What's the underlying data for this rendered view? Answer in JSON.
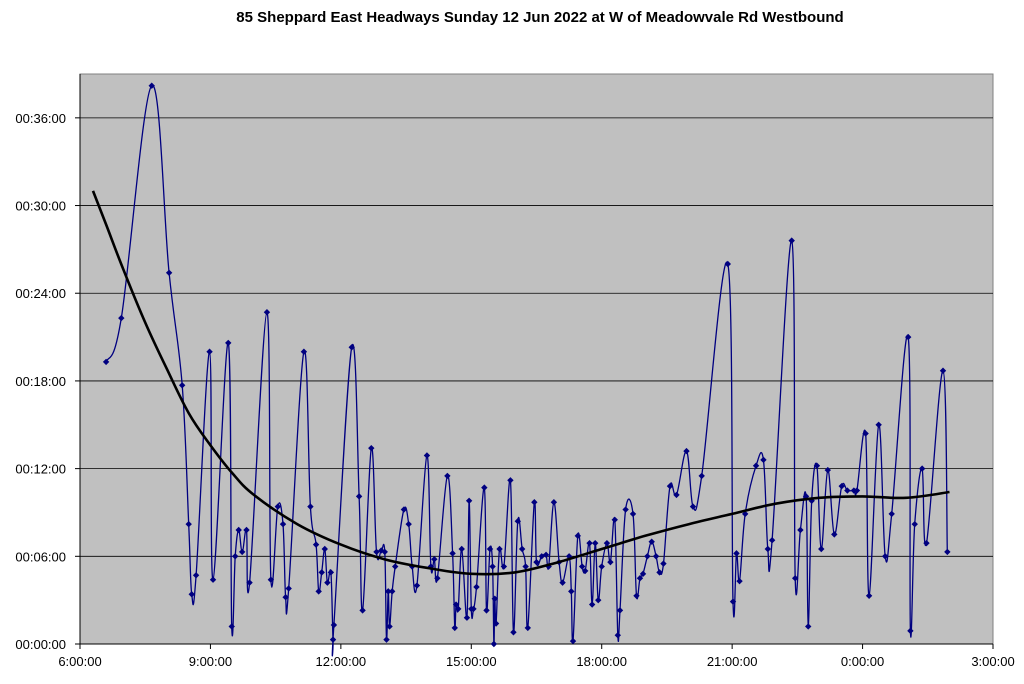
{
  "chart_data": {
    "type": "line",
    "title": "85 Sheppard East Headways Sunday 12 Jun 2022 at W of Meadowvale Rd Westbound",
    "xlabel": "",
    "ylabel": "",
    "x_unit": "hours since 6:00:00",
    "y_unit": "minutes",
    "xlim": [
      0,
      21
    ],
    "ylim": [
      0,
      39
    ],
    "x_tick_values": [
      0,
      3,
      6,
      9,
      12,
      15,
      18,
      21
    ],
    "x_tick_labels": [
      "6:00:00",
      "9:00:00",
      "12:00:00",
      "15:00:00",
      "18:00:00",
      "21:00:00",
      "0:00:00",
      "3:00:00"
    ],
    "y_tick_values": [
      0,
      6,
      12,
      18,
      24,
      30,
      36
    ],
    "y_tick_labels": [
      "00:00:00",
      "00:06:00",
      "00:12:00",
      "00:18:00",
      "00:24:00",
      "00:30:00",
      "00:36:00"
    ],
    "grid": "horizontal",
    "plot_background": "#c0c0c0",
    "series": [
      {
        "name": "",
        "style": "line-with-diamond-markers",
        "color": "#000080",
        "points": [
          [
            0.6,
            19.3
          ],
          [
            0.95,
            22.3
          ],
          [
            1.65,
            38.2
          ],
          [
            2.05,
            25.4
          ],
          [
            2.35,
            17.7
          ],
          [
            2.5,
            8.2
          ],
          [
            2.57,
            3.4
          ],
          [
            2.67,
            4.7
          ],
          [
            2.98,
            20.0
          ],
          [
            3.06,
            4.4
          ],
          [
            3.41,
            20.6
          ],
          [
            3.49,
            1.2
          ],
          [
            3.57,
            6.0
          ],
          [
            3.65,
            7.8
          ],
          [
            3.73,
            6.3
          ],
          [
            3.83,
            7.8
          ],
          [
            3.9,
            4.2
          ],
          [
            4.3,
            22.7
          ],
          [
            4.39,
            4.4
          ],
          [
            4.55,
            9.4
          ],
          [
            4.67,
            8.2
          ],
          [
            4.73,
            3.2
          ],
          [
            4.8,
            3.8
          ],
          [
            5.15,
            20.0
          ],
          [
            5.3,
            9.4
          ],
          [
            5.43,
            6.8
          ],
          [
            5.49,
            3.6
          ],
          [
            5.56,
            4.9
          ],
          [
            5.63,
            6.5
          ],
          [
            5.69,
            4.2
          ],
          [
            5.77,
            4.9
          ],
          [
            5.82,
            0.3
          ],
          [
            5.84,
            1.3
          ],
          [
            6.25,
            20.3
          ],
          [
            6.42,
            10.1
          ],
          [
            6.5,
            2.3
          ],
          [
            6.7,
            13.4
          ],
          [
            6.82,
            6.3
          ],
          [
            6.93,
            6.4
          ],
          [
            7.01,
            6.3
          ],
          [
            7.05,
            0.3
          ],
          [
            7.09,
            3.6
          ],
          [
            7.12,
            1.2
          ],
          [
            7.18,
            3.6
          ],
          [
            7.25,
            5.3
          ],
          [
            7.45,
            9.2
          ],
          [
            7.56,
            8.2
          ],
          [
            7.64,
            5.3
          ],
          [
            7.75,
            4.0
          ],
          [
            7.98,
            12.9
          ],
          [
            8.07,
            5.3
          ],
          [
            8.15,
            5.8
          ],
          [
            8.22,
            4.5
          ],
          [
            8.45,
            11.5
          ],
          [
            8.57,
            6.2
          ],
          [
            8.62,
            1.1
          ],
          [
            8.65,
            2.7
          ],
          [
            8.7,
            2.4
          ],
          [
            8.78,
            6.5
          ],
          [
            8.9,
            1.8
          ],
          [
            8.95,
            9.8
          ],
          [
            9.0,
            2.4
          ],
          [
            9.05,
            2.4
          ],
          [
            9.12,
            3.9
          ],
          [
            9.3,
            10.7
          ],
          [
            9.35,
            2.3
          ],
          [
            9.43,
            6.5
          ],
          [
            9.49,
            5.3
          ],
          [
            9.52,
            0.0
          ],
          [
            9.54,
            3.1
          ],
          [
            9.57,
            1.4
          ],
          [
            9.65,
            6.5
          ],
          [
            9.75,
            5.3
          ],
          [
            9.9,
            11.2
          ],
          [
            9.97,
            0.8
          ],
          [
            10.07,
            8.4
          ],
          [
            10.17,
            6.5
          ],
          [
            10.25,
            5.3
          ],
          [
            10.3,
            1.1
          ],
          [
            10.45,
            9.7
          ],
          [
            10.5,
            5.6
          ],
          [
            10.62,
            6.0
          ],
          [
            10.72,
            6.1
          ],
          [
            10.78,
            5.3
          ],
          [
            10.9,
            9.7
          ],
          [
            11.02,
            5.6
          ],
          [
            11.1,
            4.2
          ],
          [
            11.25,
            6.0
          ],
          [
            11.3,
            3.6
          ],
          [
            11.34,
            0.2
          ],
          [
            11.45,
            7.4
          ],
          [
            11.55,
            5.3
          ],
          [
            11.62,
            5.0
          ],
          [
            11.72,
            6.9
          ],
          [
            11.78,
            2.7
          ],
          [
            11.85,
            6.9
          ],
          [
            11.92,
            3.0
          ],
          [
            12.0,
            5.3
          ],
          [
            12.12,
            6.9
          ],
          [
            12.2,
            5.6
          ],
          [
            12.3,
            8.5
          ],
          [
            12.37,
            0.6
          ],
          [
            12.42,
            2.3
          ],
          [
            12.55,
            9.2
          ],
          [
            12.72,
            8.9
          ],
          [
            12.8,
            3.3
          ],
          [
            12.88,
            4.5
          ],
          [
            12.95,
            4.8
          ],
          [
            13.05,
            6.0
          ],
          [
            13.15,
            7.0
          ],
          [
            13.25,
            6.0
          ],
          [
            13.33,
            4.9
          ],
          [
            13.42,
            5.5
          ],
          [
            13.57,
            10.8
          ],
          [
            13.72,
            10.2
          ],
          [
            13.95,
            13.2
          ],
          [
            14.1,
            9.4
          ],
          [
            14.3,
            11.5
          ],
          [
            14.9,
            26.0
          ],
          [
            15.02,
            2.9
          ],
          [
            15.1,
            6.2
          ],
          [
            15.17,
            4.3
          ],
          [
            15.3,
            8.9
          ],
          [
            15.55,
            12.2
          ],
          [
            15.72,
            12.6
          ],
          [
            15.82,
            6.5
          ],
          [
            15.92,
            7.1
          ],
          [
            16.37,
            27.6
          ],
          [
            16.45,
            4.5
          ],
          [
            16.57,
            7.8
          ],
          [
            16.7,
            10.1
          ],
          [
            16.75,
            1.2
          ],
          [
            16.83,
            9.8
          ],
          [
            16.95,
            12.2
          ],
          [
            17.05,
            6.5
          ],
          [
            17.2,
            11.9
          ],
          [
            17.35,
            7.5
          ],
          [
            17.52,
            10.8
          ],
          [
            17.65,
            10.5
          ],
          [
            17.8,
            10.5
          ],
          [
            17.87,
            10.5
          ],
          [
            18.07,
            14.4
          ],
          [
            18.15,
            3.3
          ],
          [
            18.37,
            15.0
          ],
          [
            18.52,
            6.0
          ],
          [
            18.67,
            8.9
          ],
          [
            19.05,
            21.0
          ],
          [
            19.1,
            0.9
          ],
          [
            19.2,
            8.2
          ],
          [
            19.37,
            12.0
          ],
          [
            19.47,
            6.9
          ],
          [
            19.85,
            18.7
          ],
          [
            19.95,
            6.3
          ]
        ]
      },
      {
        "name": "",
        "style": "trend-line",
        "color": "#000000",
        "points": [
          [
            0.3,
            31.0
          ],
          [
            0.6,
            28.7
          ],
          [
            1.0,
            25.6
          ],
          [
            1.5,
            22.0
          ],
          [
            2.0,
            18.8
          ],
          [
            2.5,
            15.8
          ],
          [
            3.0,
            13.6
          ],
          [
            3.5,
            11.7
          ],
          [
            4.0,
            10.2
          ],
          [
            5.0,
            8.2
          ],
          [
            6.0,
            6.8
          ],
          [
            7.0,
            5.8
          ],
          [
            8.0,
            5.2
          ],
          [
            9.0,
            4.8
          ],
          [
            10.0,
            4.9
          ],
          [
            11.0,
            5.6
          ],
          [
            12.0,
            6.5
          ],
          [
            13.0,
            7.4
          ],
          [
            14.0,
            8.2
          ],
          [
            15.0,
            8.9
          ],
          [
            16.0,
            9.6
          ],
          [
            17.0,
            10.0
          ],
          [
            18.0,
            10.1
          ],
          [
            19.0,
            10.0
          ],
          [
            20.0,
            10.4
          ]
        ]
      }
    ]
  }
}
